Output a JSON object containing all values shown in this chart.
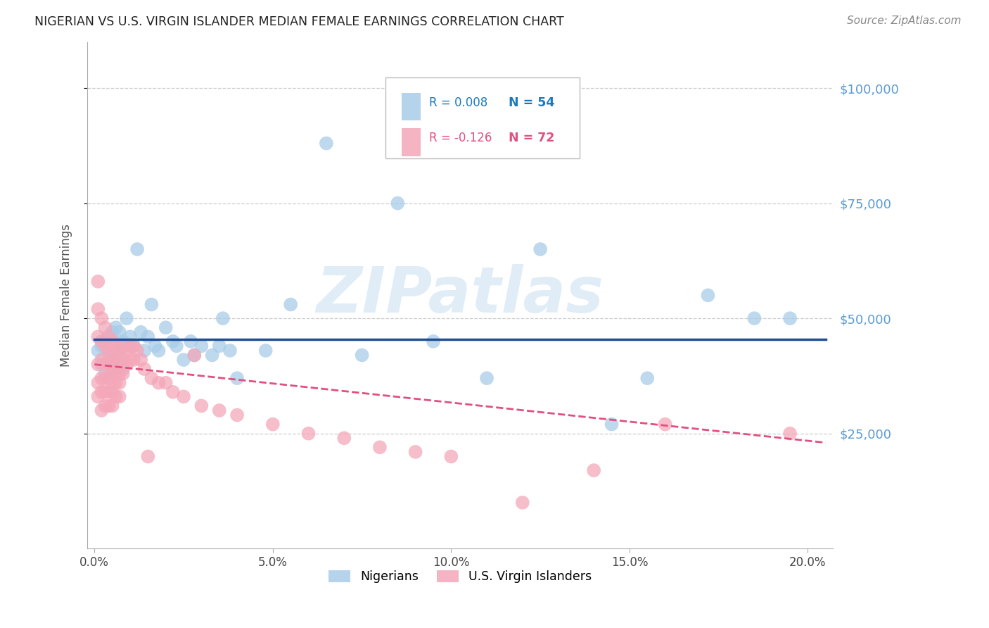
{
  "title": "NIGERIAN VS U.S. VIRGIN ISLANDER MEDIAN FEMALE EARNINGS CORRELATION CHART",
  "source": "Source: ZipAtlas.com",
  "ylabel": "Median Female Earnings",
  "ytick_color": "#5b9bd5",
  "blue_color": "#a8cce8",
  "pink_color": "#f4a7b9",
  "blue_line_color": "#1f4e96",
  "pink_line_color": "#e05080",
  "title_color": "#222222",
  "source_color": "#888888",
  "legend_R_blue": "#1a7abf",
  "legend_N_blue": "#1a7abf",
  "legend_R_pink": "#e05080",
  "legend_N_pink": "#e05080",
  "legend_blue_label": "Nigerians",
  "legend_pink_label": "U.S. Virgin Islanders",
  "watermark": "ZIPatlas",
  "blue_x": [
    0.001,
    0.002,
    0.002,
    0.003,
    0.003,
    0.004,
    0.004,
    0.005,
    0.005,
    0.005,
    0.006,
    0.006,
    0.006,
    0.007,
    0.007,
    0.007,
    0.008,
    0.008,
    0.009,
    0.009,
    0.01,
    0.011,
    0.012,
    0.013,
    0.014,
    0.015,
    0.016,
    0.017,
    0.018,
    0.02,
    0.022,
    0.023,
    0.025,
    0.027,
    0.028,
    0.03,
    0.033,
    0.035,
    0.036,
    0.038,
    0.04,
    0.048,
    0.055,
    0.065,
    0.075,
    0.085,
    0.095,
    0.11,
    0.125,
    0.145,
    0.155,
    0.172,
    0.185,
    0.195
  ],
  "blue_y": [
    43000,
    40000,
    44000,
    38000,
    45000,
    42000,
    46000,
    41000,
    39000,
    47000,
    44000,
    40000,
    48000,
    43000,
    41000,
    47000,
    45000,
    39000,
    44000,
    50000,
    46000,
    44000,
    65000,
    47000,
    43000,
    46000,
    53000,
    44000,
    43000,
    48000,
    45000,
    44000,
    41000,
    45000,
    42000,
    44000,
    42000,
    44000,
    50000,
    43000,
    37000,
    43000,
    53000,
    88000,
    42000,
    75000,
    45000,
    37000,
    65000,
    27000,
    37000,
    55000,
    50000,
    50000
  ],
  "pink_x": [
    0.001,
    0.001,
    0.001,
    0.001,
    0.001,
    0.001,
    0.002,
    0.002,
    0.002,
    0.002,
    0.002,
    0.002,
    0.003,
    0.003,
    0.003,
    0.003,
    0.003,
    0.003,
    0.004,
    0.004,
    0.004,
    0.004,
    0.004,
    0.004,
    0.005,
    0.005,
    0.005,
    0.005,
    0.005,
    0.005,
    0.006,
    0.006,
    0.006,
    0.006,
    0.006,
    0.007,
    0.007,
    0.007,
    0.007,
    0.007,
    0.008,
    0.008,
    0.008,
    0.009,
    0.009,
    0.01,
    0.01,
    0.011,
    0.011,
    0.012,
    0.013,
    0.014,
    0.015,
    0.016,
    0.018,
    0.02,
    0.022,
    0.025,
    0.028,
    0.03,
    0.035,
    0.04,
    0.05,
    0.06,
    0.07,
    0.08,
    0.09,
    0.1,
    0.12,
    0.14,
    0.16,
    0.195
  ],
  "pink_y": [
    58000,
    52000,
    46000,
    40000,
    36000,
    33000,
    50000,
    45000,
    41000,
    37000,
    34000,
    30000,
    48000,
    44000,
    40000,
    37000,
    34000,
    31000,
    46000,
    43000,
    40000,
    37000,
    34000,
    31000,
    45000,
    42000,
    39000,
    36000,
    34000,
    31000,
    44000,
    41000,
    38000,
    36000,
    33000,
    43000,
    41000,
    38000,
    36000,
    33000,
    44000,
    41000,
    38000,
    43000,
    40000,
    44000,
    41000,
    44000,
    41000,
    43000,
    41000,
    39000,
    20000,
    37000,
    36000,
    36000,
    34000,
    33000,
    42000,
    31000,
    30000,
    29000,
    27000,
    25000,
    24000,
    22000,
    21000,
    20000,
    10000,
    17000,
    27000,
    25000
  ]
}
